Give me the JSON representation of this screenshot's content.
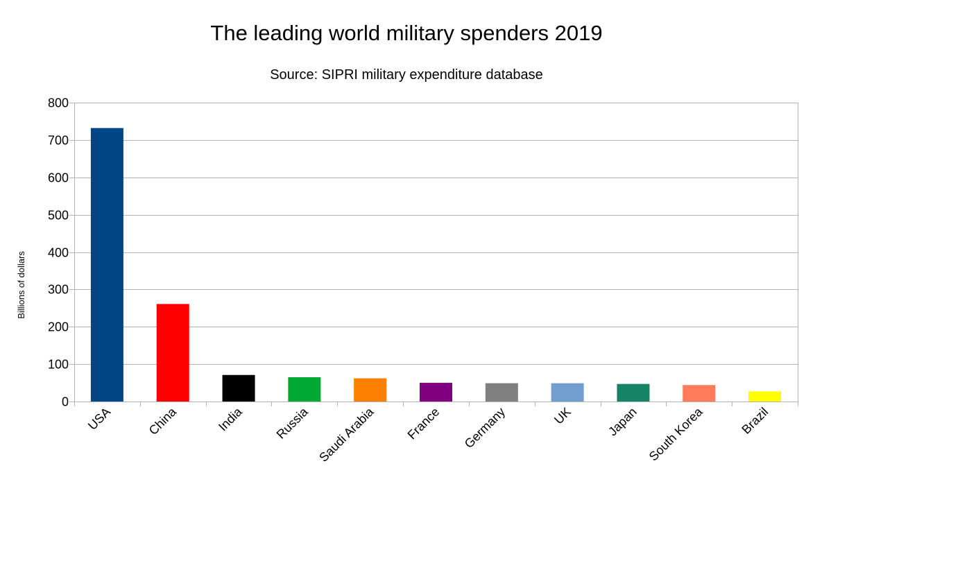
{
  "chart_data": {
    "type": "bar",
    "title": "The leading world military spenders 2019",
    "subtitle": "Source: SIPRI military expenditure database",
    "xlabel": "",
    "ylabel": "Billions of dollars",
    "ylim": [
      0,
      800
    ],
    "yticks": [
      0,
      100,
      200,
      300,
      400,
      500,
      600,
      700,
      800
    ],
    "grid": true,
    "legend": "none",
    "categories": [
      "USA",
      "China",
      "India",
      "Russia",
      "Saudi Arabia",
      "France",
      "Germany",
      "UK",
      "Japan",
      "South Korea",
      "Brazil"
    ],
    "values": [
      732,
      261,
      71,
      65,
      62,
      50,
      49,
      49,
      47,
      44,
      27
    ],
    "colors": [
      "#004586",
      "#ff0000",
      "#000000",
      "#00a933",
      "#ff8000",
      "#800080",
      "#808080",
      "#729fcf",
      "#158466",
      "#ff7b59",
      "#ffff00"
    ]
  }
}
